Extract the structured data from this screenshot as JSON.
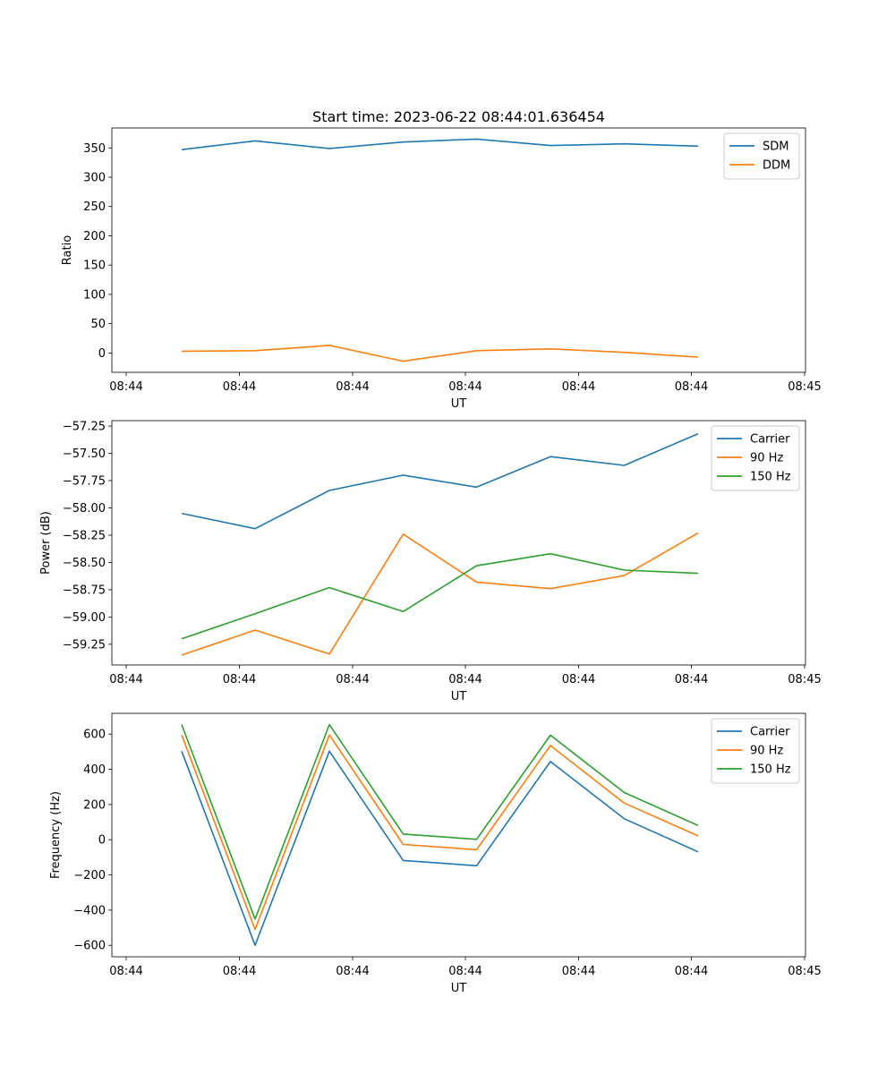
{
  "figure": {
    "title": "Start time: 2023-06-22 08:44:01.636454",
    "x_label": "UT",
    "x_ticks": [
      "08:44",
      "08:44",
      "08:44",
      "08:44",
      "08:44",
      "08:44",
      "08:44"
    ],
    "x_last_tick": "08:45"
  },
  "chart_data": [
    {
      "type": "line",
      "title": "Start time: 2023-06-22 08:44:01.636454",
      "xlabel": "UT",
      "ylabel": "Ratio",
      "ylim": [
        -33,
        384
      ],
      "yticks": [
        0,
        50,
        100,
        150,
        200,
        250,
        300,
        350
      ],
      "ytick_labels": [
        "0",
        "50",
        "100",
        "150",
        "200",
        "250",
        "300",
        "350"
      ],
      "legend": "top-right",
      "series": [
        {
          "name": "SDM",
          "color": "#1f77b4",
          "values": [
            347,
            362,
            349,
            360,
            365,
            354,
            357,
            353
          ]
        },
        {
          "name": "DDM",
          "color": "#ff7f0e",
          "values": [
            3,
            4,
            13,
            -14,
            4,
            7,
            1,
            -7
          ]
        }
      ]
    },
    {
      "type": "line",
      "title": "",
      "xlabel": "UT",
      "ylabel": "Power (dB)",
      "ylim": [
        -59.44,
        -57.2
      ],
      "yticks": [
        -59.25,
        -59.0,
        -58.75,
        -58.5,
        -58.25,
        -58.0,
        -57.75,
        -57.5,
        -57.25
      ],
      "ytick_labels": [
        "−59.25",
        "−59.00",
        "−58.75",
        "−58.50",
        "−58.25",
        "−58.00",
        "−57.75",
        "−57.50",
        "−57.25"
      ],
      "legend": "top-right",
      "series": [
        {
          "name": "Carrier",
          "color": "#1f77b4",
          "values": [
            -58.05,
            -58.19,
            -57.84,
            -57.7,
            -57.81,
            -57.53,
            -57.61,
            -57.32
          ]
        },
        {
          "name": "90 Hz",
          "color": "#ff7f0e",
          "values": [
            -59.35,
            -59.12,
            -59.34,
            -58.24,
            -58.68,
            -58.74,
            -58.62,
            -58.23
          ]
        },
        {
          "name": "150 Hz",
          "color": "#2ca02c",
          "values": [
            -59.2,
            -58.97,
            -58.73,
            -58.95,
            -58.53,
            -58.42,
            -58.57,
            -58.6
          ]
        }
      ]
    },
    {
      "type": "line",
      "title": "",
      "xlabel": "UT",
      "ylabel": "Frequency (Hz)",
      "ylim": [
        -665,
        718
      ],
      "yticks": [
        -600,
        -400,
        -200,
        0,
        200,
        400,
        600
      ],
      "ytick_labels": [
        "−600",
        "−400",
        "−200",
        "0",
        "200",
        "400",
        "600"
      ],
      "legend": "top-right",
      "series": [
        {
          "name": "Carrier",
          "color": "#1f77b4",
          "values": [
            503,
            -600,
            503,
            -118,
            -148,
            444,
            119,
            -69
          ]
        },
        {
          "name": "90 Hz",
          "color": "#ff7f0e",
          "values": [
            595,
            -510,
            595,
            -27,
            -57,
            535,
            208,
            22
          ]
        },
        {
          "name": "150 Hz",
          "color": "#2ca02c",
          "values": [
            654,
            -451,
            654,
            32,
            2,
            594,
            268,
            81
          ]
        }
      ]
    }
  ]
}
